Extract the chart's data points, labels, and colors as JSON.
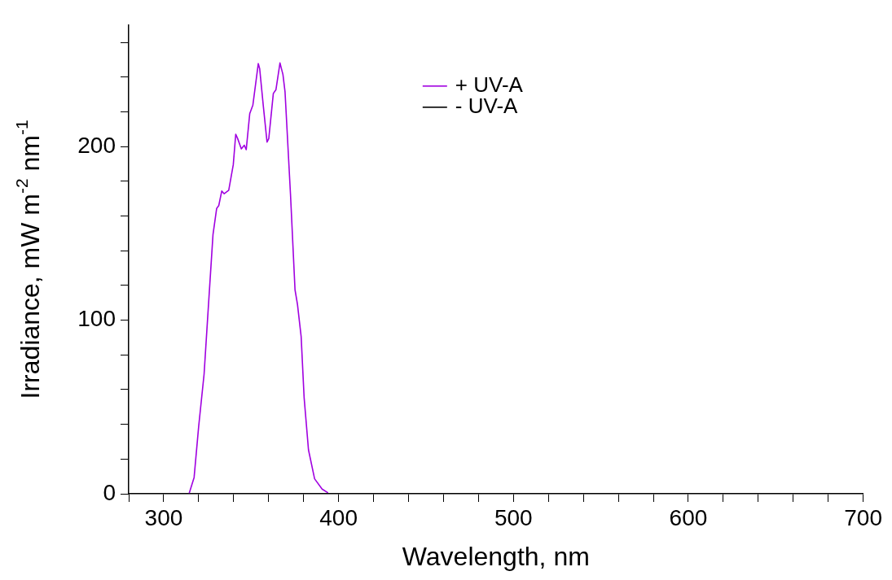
{
  "chart_data": {
    "type": "line",
    "xlabel": "Wavelength, nm",
    "ylabel": "Irradiance, mW m$^{-2}$ nm$^{-1}$",
    "xlim": [
      280,
      700
    ],
    "ylim": [
      0,
      270
    ],
    "xticks": [
      {
        "value": 280,
        "label": null
      },
      300,
      {
        "value": 320,
        "label": null
      },
      {
        "value": 340,
        "label": null
      },
      {
        "value": 360,
        "label": null
      },
      {
        "value": 380,
        "label": null
      },
      400,
      {
        "value": 420,
        "label": null
      },
      {
        "value": 440,
        "label": null
      },
      {
        "value": 460,
        "label": null
      },
      {
        "value": 480,
        "label": null
      },
      500,
      {
        "value": 520,
        "label": null
      },
      {
        "value": 540,
        "label": null
      },
      {
        "value": 560,
        "label": null
      },
      {
        "value": 580,
        "label": null
      },
      600,
      {
        "value": 620,
        "label": null
      },
      {
        "value": 640,
        "label": null
      },
      {
        "value": 660,
        "label": null
      },
      {
        "value": 680,
        "label": null
      },
      700
    ],
    "yticks": [
      0,
      {
        "value": 20,
        "label": null
      },
      {
        "value": 40,
        "label": null
      },
      {
        "value": 60,
        "label": null
      },
      {
        "value": 80,
        "label": null
      },
      100,
      {
        "value": 120,
        "label": null
      },
      {
        "value": 140,
        "label": null
      },
      {
        "value": 160,
        "label": null
      },
      {
        "value": 180,
        "label": null
      },
      200,
      {
        "value": 220,
        "label": null
      },
      {
        "value": 240,
        "label": null
      },
      {
        "value": 260,
        "label": null
      }
    ],
    "grid": false,
    "legend": "top",
    "marker": "none",
    "line_style": "solid",
    "series": [
      {
        "name": "- UV-A",
        "color": "#000000",
        "x": [
          280,
          700
        ],
        "values": [
          0,
          0
        ]
      },
      {
        "name": "+ UV-A",
        "color": "#a000e0",
        "x": [
          314.5,
          317.4,
          320,
          323.1,
          325.1,
          328.2,
          330.3,
          331.5,
          333.2,
          334.6,
          337.2,
          338.6,
          339.8,
          341.2,
          342.3,
          344.4,
          346.1,
          347.2,
          349.2,
          351,
          354.1,
          354.9,
          357,
          359.1,
          360.1,
          362.7,
          364.2,
          366.5,
          368.2,
          369.4,
          372.5,
          375.1,
          376.5,
          378.6,
          380.3,
          382.8,
          386.3,
          390.6,
          394
        ],
        "values": [
          0,
          9.4,
          38.7,
          68.9,
          100.7,
          149.3,
          164.4,
          166,
          174.4,
          172.8,
          174.8,
          182.8,
          189.6,
          207.1,
          204.6,
          198.7,
          200.8,
          198.2,
          218.9,
          223.9,
          247.8,
          244.8,
          223.1,
          202.6,
          204.6,
          230.6,
          232.8,
          248.2,
          241.5,
          231.4,
          172.8,
          117.5,
          109.1,
          90.6,
          55.5,
          25.3,
          8.6,
          2.7,
          0.5
        ]
      }
    ]
  }
}
